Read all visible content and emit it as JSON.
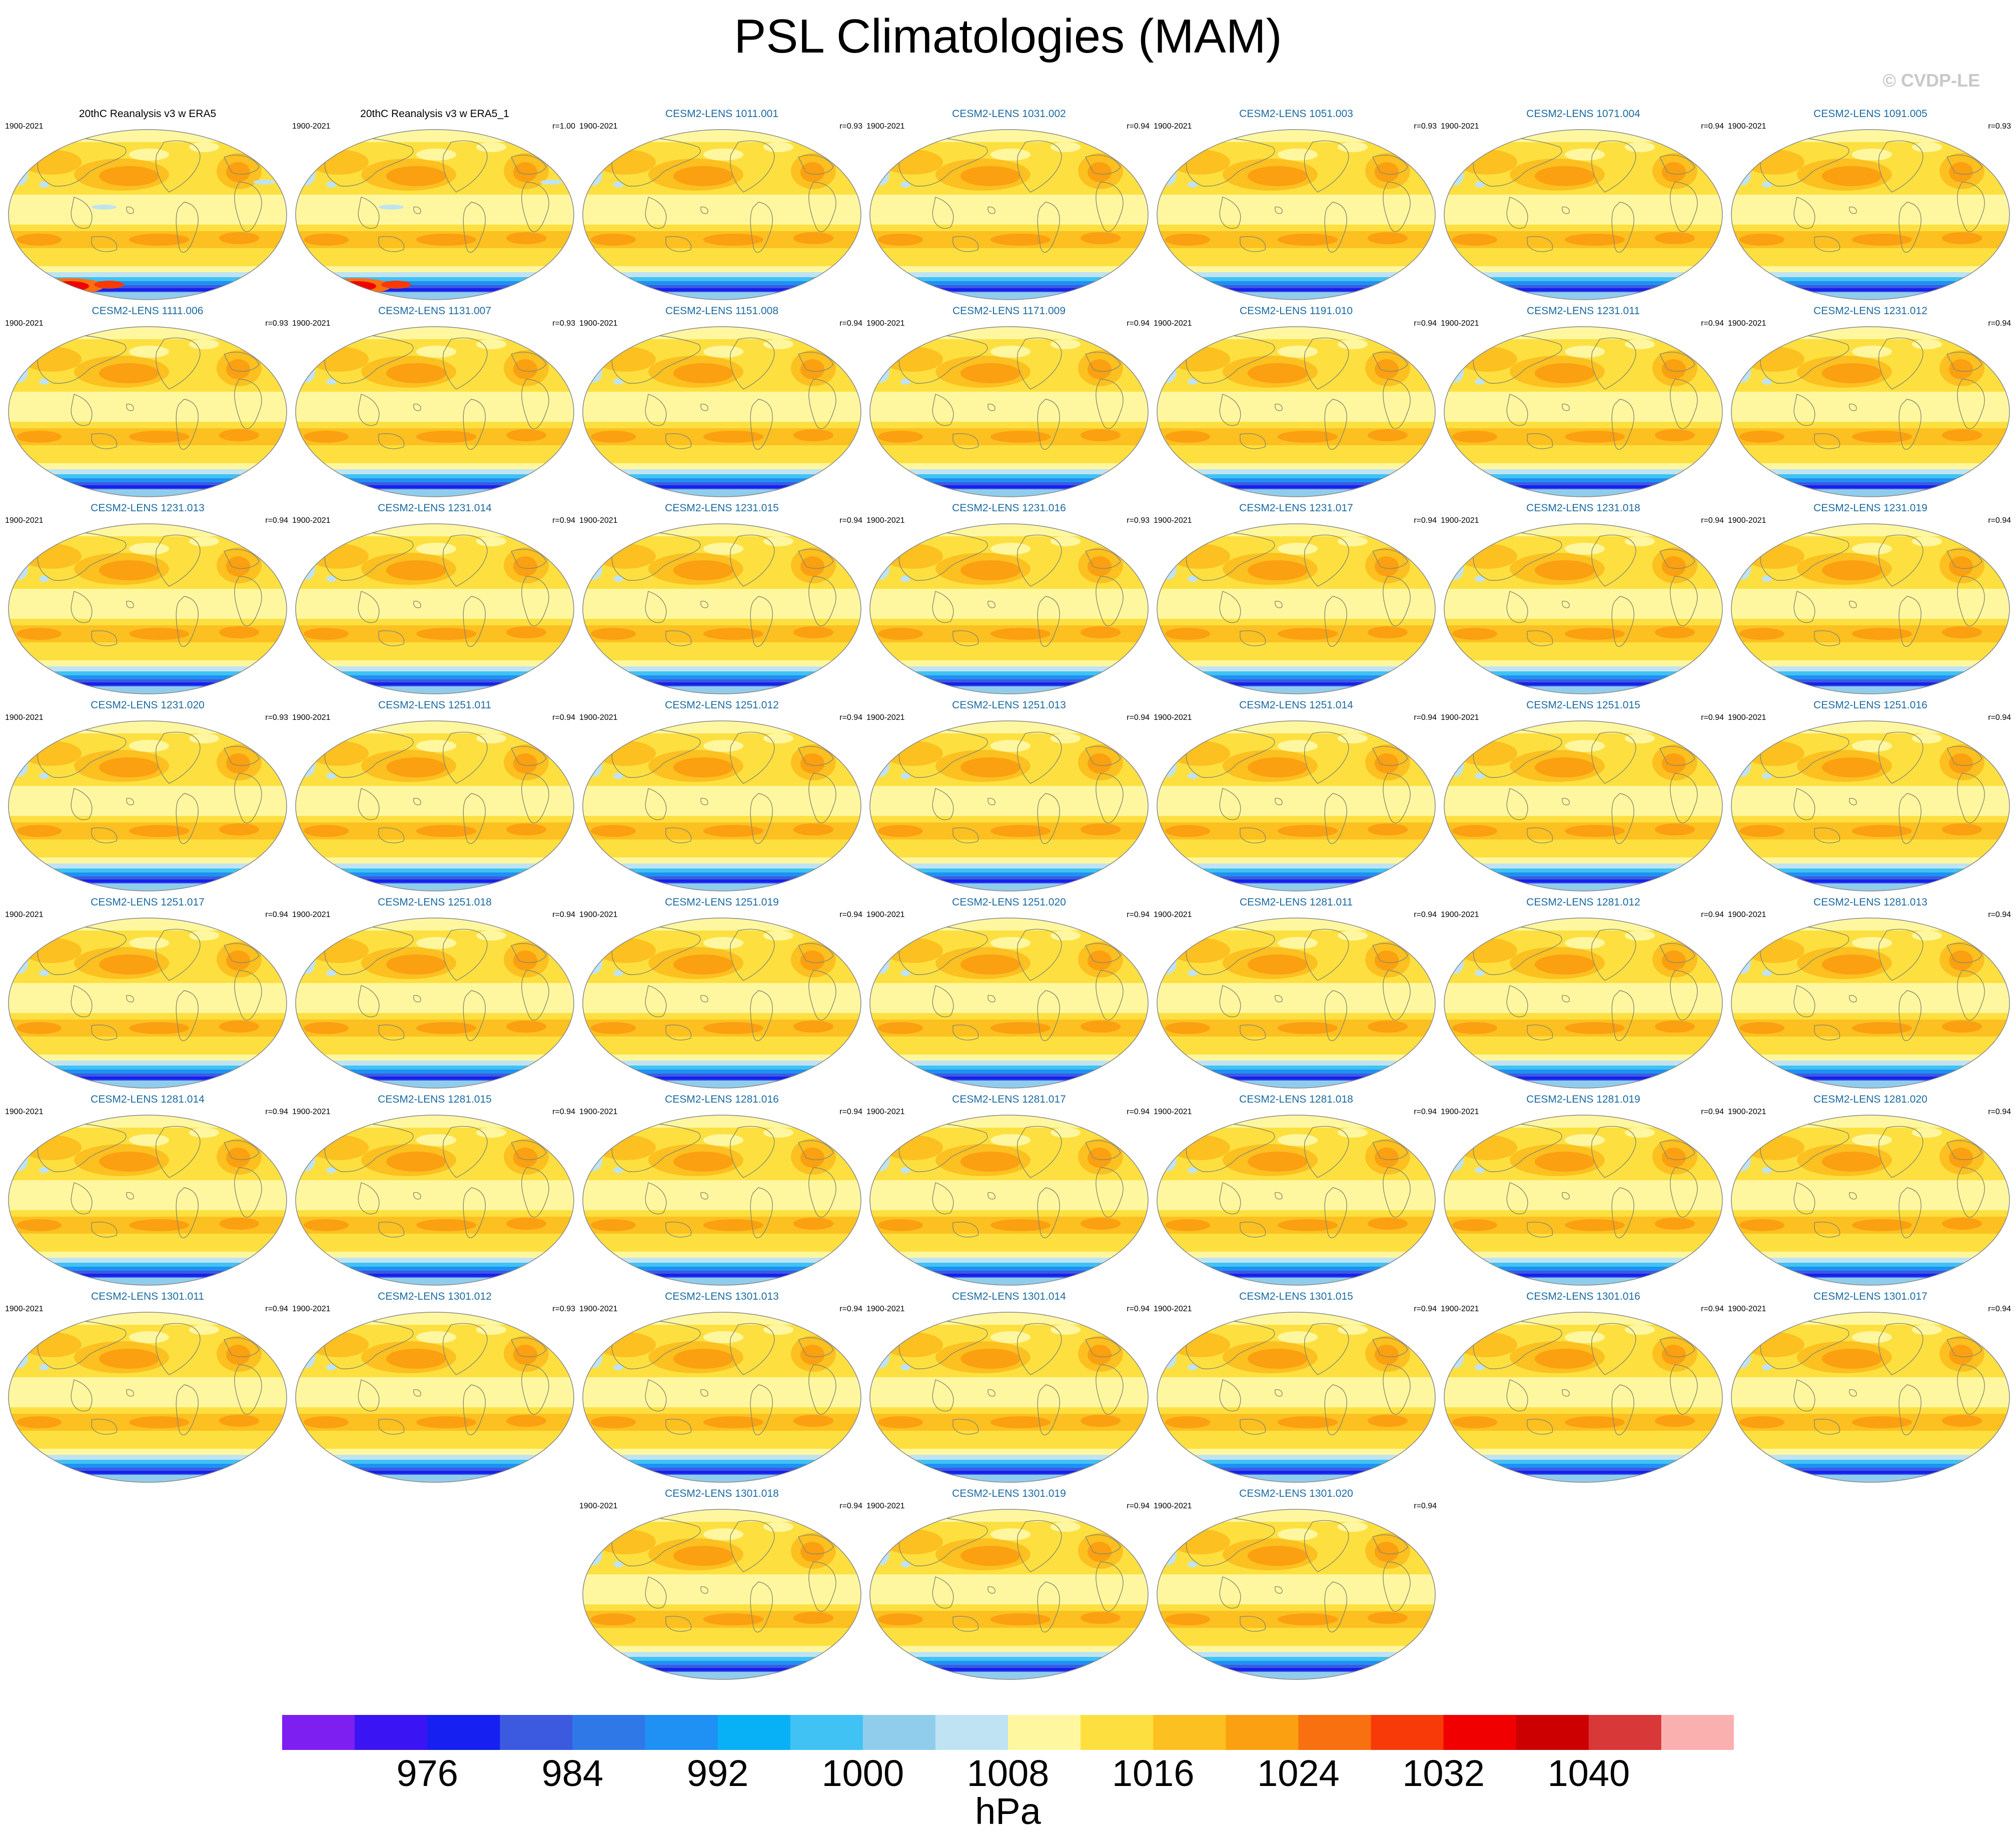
{
  "title": "PSL Climatologies (MAM)",
  "copyright": "© CVDP-LE",
  "panels": [
    {
      "title": "20thC Reanalysis v3 w ERA5",
      "period": "1900-2021",
      "corr": "",
      "type": "obs"
    },
    {
      "title": "20thC Reanalysis v3 w ERA5_1",
      "period": "1900-2021",
      "corr": "r=1.00",
      "type": "obs"
    },
    {
      "title": "CESM2-LENS 1011.001",
      "period": "1900-2021",
      "corr": "r=0.93",
      "type": "model"
    },
    {
      "title": "CESM2-LENS 1031.002",
      "period": "1900-2021",
      "corr": "r=0.94",
      "type": "model"
    },
    {
      "title": "CESM2-LENS 1051.003",
      "period": "1900-2021",
      "corr": "r=0.93",
      "type": "model"
    },
    {
      "title": "CESM2-LENS 1071.004",
      "period": "1900-2021",
      "corr": "r=0.94",
      "type": "model"
    },
    {
      "title": "CESM2-LENS 1091.005",
      "period": "1900-2021",
      "corr": "r=0.93",
      "type": "model"
    },
    {
      "title": "CESM2-LENS 1111.006",
      "period": "1900-2021",
      "corr": "r=0.93",
      "type": "model"
    },
    {
      "title": "CESM2-LENS 1131.007",
      "period": "1900-2021",
      "corr": "r=0.93",
      "type": "model"
    },
    {
      "title": "CESM2-LENS 1151.008",
      "period": "1900-2021",
      "corr": "r=0.94",
      "type": "model"
    },
    {
      "title": "CESM2-LENS 1171.009",
      "period": "1900-2021",
      "corr": "r=0.94",
      "type": "model"
    },
    {
      "title": "CESM2-LENS 1191.010",
      "period": "1900-2021",
      "corr": "r=0.94",
      "type": "model"
    },
    {
      "title": "CESM2-LENS 1231.011",
      "period": "1900-2021",
      "corr": "r=0.94",
      "type": "model"
    },
    {
      "title": "CESM2-LENS 1231.012",
      "period": "1900-2021",
      "corr": "r=0.94",
      "type": "model"
    },
    {
      "title": "CESM2-LENS 1231.013",
      "period": "1900-2021",
      "corr": "r=0.94",
      "type": "model"
    },
    {
      "title": "CESM2-LENS 1231.014",
      "period": "1900-2021",
      "corr": "r=0.94",
      "type": "model"
    },
    {
      "title": "CESM2-LENS 1231.015",
      "period": "1900-2021",
      "corr": "r=0.94",
      "type": "model"
    },
    {
      "title": "CESM2-LENS 1231.016",
      "period": "1900-2021",
      "corr": "r=0.93",
      "type": "model"
    },
    {
      "title": "CESM2-LENS 1231.017",
      "period": "1900-2021",
      "corr": "r=0.94",
      "type": "model"
    },
    {
      "title": "CESM2-LENS 1231.018",
      "period": "1900-2021",
      "corr": "r=0.94",
      "type": "model"
    },
    {
      "title": "CESM2-LENS 1231.019",
      "period": "1900-2021",
      "corr": "r=0.94",
      "type": "model"
    },
    {
      "title": "CESM2-LENS 1231.020",
      "period": "1900-2021",
      "corr": "r=0.93",
      "type": "model"
    },
    {
      "title": "CESM2-LENS 1251.011",
      "period": "1900-2021",
      "corr": "r=0.94",
      "type": "model"
    },
    {
      "title": "CESM2-LENS 1251.012",
      "period": "1900-2021",
      "corr": "r=0.94",
      "type": "model"
    },
    {
      "title": "CESM2-LENS 1251.013",
      "period": "1900-2021",
      "corr": "r=0.94",
      "type": "model"
    },
    {
      "title": "CESM2-LENS 1251.014",
      "period": "1900-2021",
      "corr": "r=0.94",
      "type": "model"
    },
    {
      "title": "CESM2-LENS 1251.015",
      "period": "1900-2021",
      "corr": "r=0.94",
      "type": "model"
    },
    {
      "title": "CESM2-LENS 1251.016",
      "period": "1900-2021",
      "corr": "r=0.94",
      "type": "model"
    },
    {
      "title": "CESM2-LENS 1251.017",
      "period": "1900-2021",
      "corr": "r=0.94",
      "type": "model"
    },
    {
      "title": "CESM2-LENS 1251.018",
      "period": "1900-2021",
      "corr": "r=0.94",
      "type": "model"
    },
    {
      "title": "CESM2-LENS 1251.019",
      "period": "1900-2021",
      "corr": "r=0.94",
      "type": "model"
    },
    {
      "title": "CESM2-LENS 1251.020",
      "period": "1900-2021",
      "corr": "r=0.94",
      "type": "model"
    },
    {
      "title": "CESM2-LENS 1281.011",
      "period": "1900-2021",
      "corr": "r=0.94",
      "type": "model"
    },
    {
      "title": "CESM2-LENS 1281.012",
      "period": "1900-2021",
      "corr": "r=0.94",
      "type": "model"
    },
    {
      "title": "CESM2-LENS 1281.013",
      "period": "1900-2021",
      "corr": "r=0.94",
      "type": "model"
    },
    {
      "title": "CESM2-LENS 1281.014",
      "period": "1900-2021",
      "corr": "r=0.94",
      "type": "model"
    },
    {
      "title": "CESM2-LENS 1281.015",
      "period": "1900-2021",
      "corr": "r=0.94",
      "type": "model"
    },
    {
      "title": "CESM2-LENS 1281.016",
      "period": "1900-2021",
      "corr": "r=0.94",
      "type": "model"
    },
    {
      "title": "CESM2-LENS 1281.017",
      "period": "1900-2021",
      "corr": "r=0.94",
      "type": "model"
    },
    {
      "title": "CESM2-LENS 1281.018",
      "period": "1900-2021",
      "corr": "r=0.94",
      "type": "model"
    },
    {
      "title": "CESM2-LENS 1281.019",
      "period": "1900-2021",
      "corr": "r=0.94",
      "type": "model"
    },
    {
      "title": "CESM2-LENS 1281.020",
      "period": "1900-2021",
      "corr": "r=0.94",
      "type": "model"
    },
    {
      "title": "CESM2-LENS 1301.011",
      "period": "1900-2021",
      "corr": "r=0.94",
      "type": "model"
    },
    {
      "title": "CESM2-LENS 1301.012",
      "period": "1900-2021",
      "corr": "r=0.93",
      "type": "model"
    },
    {
      "title": "CESM2-LENS 1301.013",
      "period": "1900-2021",
      "corr": "r=0.94",
      "type": "model"
    },
    {
      "title": "CESM2-LENS 1301.014",
      "period": "1900-2021",
      "corr": "r=0.94",
      "type": "model"
    },
    {
      "title": "CESM2-LENS 1301.015",
      "period": "1900-2021",
      "corr": "r=0.94",
      "type": "model"
    },
    {
      "title": "CESM2-LENS 1301.016",
      "period": "1900-2021",
      "corr": "r=0.94",
      "type": "model"
    },
    {
      "title": "CESM2-LENS 1301.017",
      "period": "1900-2021",
      "corr": "r=0.94",
      "type": "model"
    },
    {
      "title": "CESM2-LENS 1301.018",
      "period": "1900-2021",
      "corr": "r=0.94",
      "type": "model"
    },
    {
      "title": "CESM2-LENS 1301.019",
      "period": "1900-2021",
      "corr": "r=0.94",
      "type": "model"
    },
    {
      "title": "CESM2-LENS 1301.020",
      "period": "1900-2021",
      "corr": "r=0.94",
      "type": "model"
    }
  ],
  "colorbar": {
    "colors": [
      "#7c1ff0",
      "#3a14f2",
      "#1620f0",
      "#3c5ae0",
      "#2f78e8",
      "#1f90f4",
      "#08b0f6",
      "#40c2f4",
      "#90cdec",
      "#bfe3f2",
      "#fff7a0",
      "#fde040",
      "#fcc020",
      "#fba010",
      "#f87010",
      "#f83a08",
      "#f00000",
      "#cc0000",
      "#d83838",
      "#fbb0b0"
    ],
    "ticks": [
      "976",
      "984",
      "992",
      "1000",
      "1008",
      "1016",
      "1024",
      "1032",
      "1040"
    ],
    "units": "hPa"
  },
  "colors": {
    "title_model": "#1a6aa0",
    "title_obs": "#000000",
    "copyright": "#c8c8c8"
  }
}
